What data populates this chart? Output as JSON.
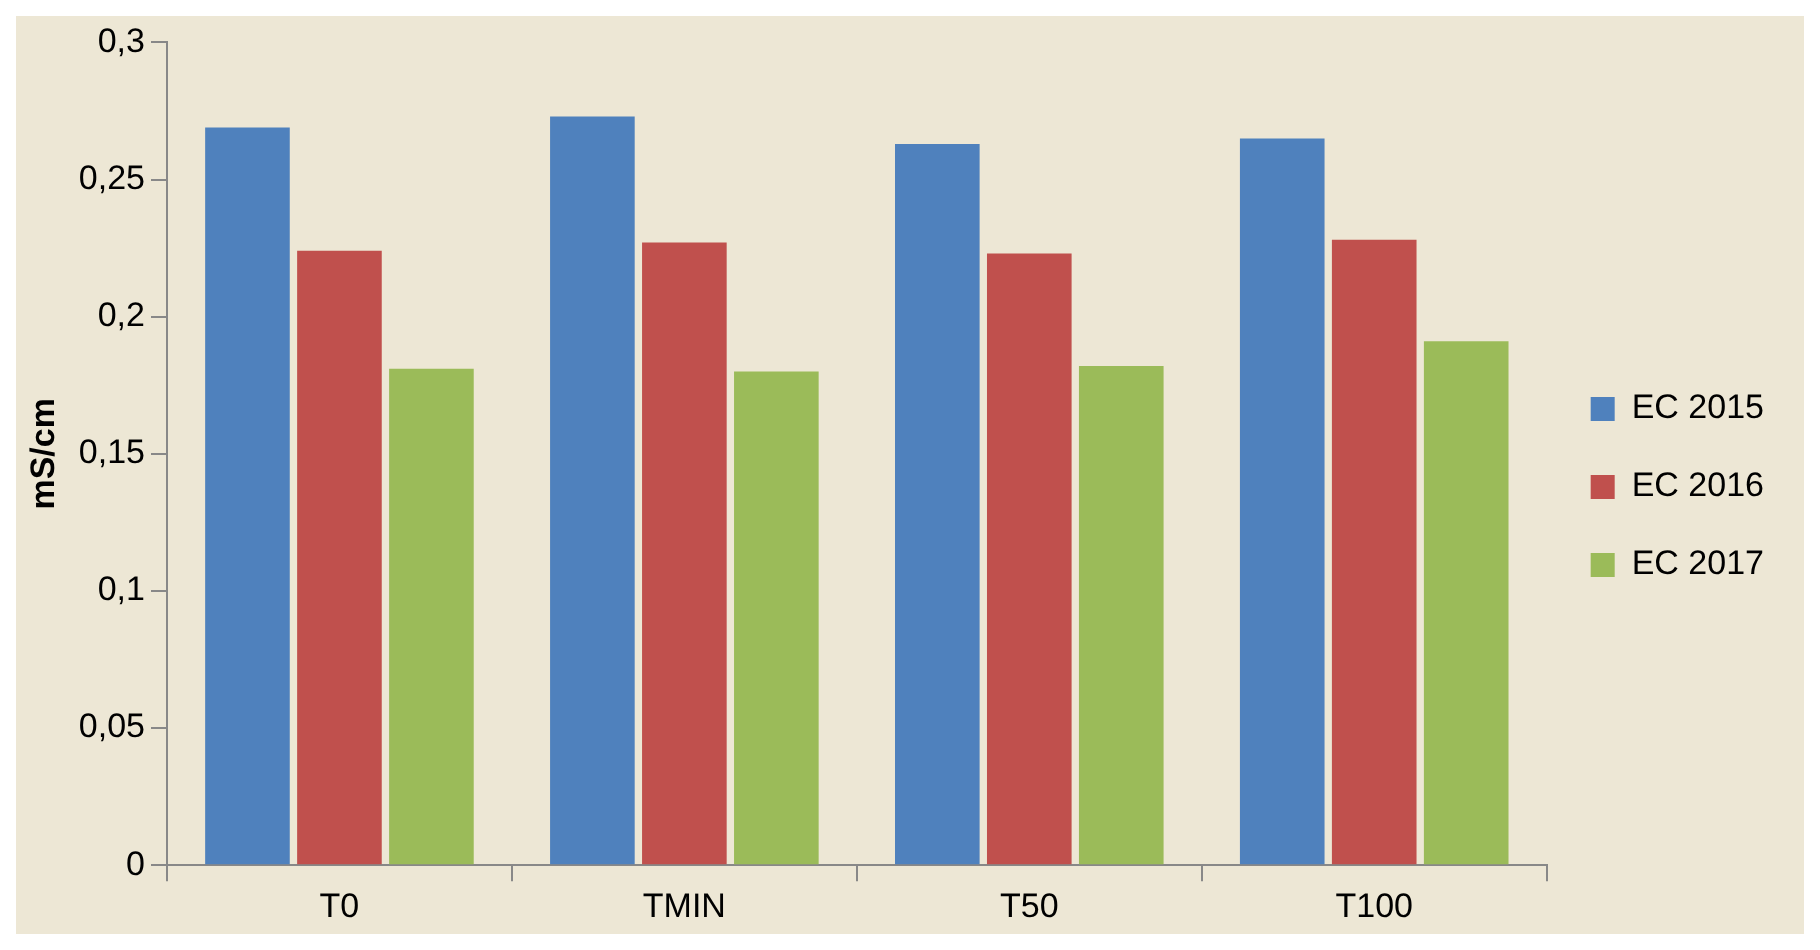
{
  "chart_data": {
    "type": "bar",
    "ylabel": "mS/cm",
    "categories": [
      "T0",
      "TMIN",
      "T50",
      "T100"
    ],
    "series": [
      {
        "name": "EC 2015",
        "color": "#4f81bd",
        "values": [
          0.269,
          0.273,
          0.263,
          0.265
        ]
      },
      {
        "name": "EC 2016",
        "color": "#c0504d",
        "values": [
          0.224,
          0.227,
          0.223,
          0.228
        ]
      },
      {
        "name": "EC 2017",
        "color": "#9bbb59",
        "values": [
          0.181,
          0.18,
          0.182,
          0.191
        ]
      }
    ],
    "ylim": [
      0,
      0.3
    ],
    "yticks": [
      {
        "value": 0,
        "label": "0"
      },
      {
        "value": 0.05,
        "label": "0,05"
      },
      {
        "value": 0.1,
        "label": "0,1"
      },
      {
        "value": 0.15,
        "label": "0,15"
      },
      {
        "value": 0.2,
        "label": "0,2"
      },
      {
        "value": 0.25,
        "label": "0,25"
      },
      {
        "value": 0.3,
        "label": "0,3"
      }
    ],
    "grid": false,
    "legend": "right"
  }
}
